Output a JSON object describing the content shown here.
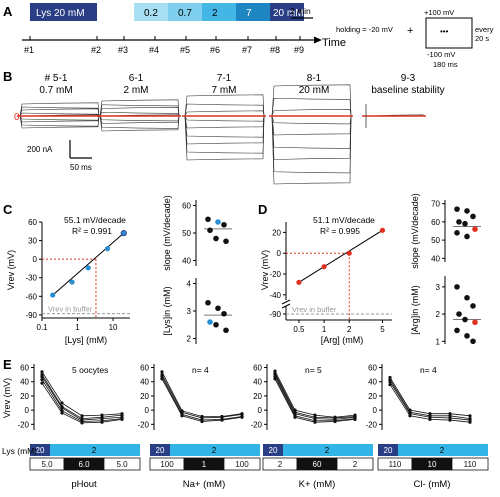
{
  "panel_labels": [
    "A",
    "B",
    "C",
    "D",
    "E"
  ],
  "panel_a": {
    "lys_bar": "Lys 20 mM",
    "conc_steps": [
      "0.2",
      "0.7",
      "2",
      "7",
      "20 mM"
    ],
    "step_colors": [
      "#a8dff3",
      "#7fd0ee",
      "#44b6e6",
      "#1f86c4",
      "#2a3e86"
    ],
    "scale": "2 min",
    "time_label": "Time",
    "markers": [
      "#1",
      "#2",
      "#3",
      "#4",
      "#5",
      "#6",
      "#7",
      "#8",
      "#9"
    ],
    "protocol": {
      "holding": "holding = -20 mV",
      "plus": "+",
      "v_top": "+100 mV",
      "dots": "•••",
      "v_bottom": "-100 mV",
      "duration": "180 ms",
      "every": "every 20 s"
    }
  },
  "panel_b": {
    "zero_label": "0",
    "groups": [
      {
        "title": "# 5-1",
        "sub": "0.7 mM"
      },
      {
        "title": "6-1",
        "sub": "2 mM"
      },
      {
        "title": "7-1",
        "sub": "7 mM"
      },
      {
        "title": "8-1",
        "sub": "20 mM"
      },
      {
        "title": "9-3",
        "sub": "baseline stability"
      }
    ],
    "scale_current": "200 nA",
    "scale_time": "50 ms"
  },
  "panel_c": {
    "annotation": "55.1 mV/decade",
    "r2": "R² = 0.991",
    "ylabel": "Vrev (mV)",
    "xlabel": "[Lys]   (mM)",
    "buffer_label": "Vrev in buffer",
    "yticks": [
      "60",
      "30",
      "0",
      "-30",
      "-60",
      "-90"
    ],
    "xticks": [
      "0.1",
      "1",
      "10"
    ],
    "slope_ylabel": "slope (mV/decade)",
    "slope_ticks": [
      "60",
      "50",
      "40"
    ],
    "lysin_ylabel": "[Lys]in (mM)",
    "lysin_ticks": [
      "4",
      "3",
      "2"
    ]
  },
  "panel_d": {
    "annotation": "51.1 mV/decade",
    "r2": "R² = 0.995",
    "ylabel": "Vrev (mV)",
    "xlabel": "[Arg]   (mM)",
    "buffer_label": "Vrev in buffer",
    "yticks": [
      "20",
      "0",
      "-20",
      "-40",
      "-90"
    ],
    "xticks": [
      "0.5",
      "1",
      "2",
      "5"
    ],
    "slope_ylabel": "slope (mV/decade)",
    "slope_ticks": [
      "70",
      "60",
      "50",
      "40"
    ],
    "argin_ylabel": "[Arg]in (mM)",
    "argin_ticks": [
      "3",
      "2",
      "1"
    ]
  },
  "panel_e": {
    "ylabel": "Vrev (mV)",
    "yticks": [
      "60",
      "40",
      "20",
      "0",
      "-20"
    ],
    "lys_label": "Lys (mM)",
    "lys_values": [
      "20",
      "2"
    ],
    "panels": [
      {
        "n_label": "5 oocytes",
        "bottom_values": [
          "5.0",
          "6.0",
          "5.0"
        ],
        "xlabel": "pHout"
      },
      {
        "n_label": "n= 4",
        "bottom_values": [
          "100",
          "1",
          "100"
        ],
        "xlabel": "Na+ (mM)"
      },
      {
        "n_label": "n= 5",
        "bottom_values": [
          "2",
          "60",
          "2"
        ],
        "xlabel": "K+ (mM)"
      },
      {
        "n_label": "n= 4",
        "bottom_values": [
          "110",
          "10",
          "110"
        ],
        "xlabel": "Cl- (mM)"
      }
    ]
  },
  "chart_data": [
    {
      "type": "scatter",
      "panel": "C",
      "title": "55.1 mV/decade",
      "xlabel": "[Lys] (mM)",
      "ylabel": "Vrev (mV)",
      "log_x": true,
      "xlim": [
        0.1,
        30
      ],
      "ylim": [
        -95,
        60
      ],
      "x": [
        0.2,
        0.7,
        2,
        7,
        20
      ],
      "y": [
        -58,
        -37,
        -14,
        17,
        42
      ],
      "buffer_level": -88
    },
    {
      "type": "scatter",
      "panel": "C-slope",
      "ylabel": "slope (mV/decade)",
      "ylim": [
        38,
        62
      ],
      "values": [
        55,
        54,
        53,
        51,
        48,
        47
      ],
      "highlight_index": [
        1
      ],
      "mean": 51.5
    },
    {
      "type": "scatter",
      "panel": "C-lysin",
      "ylabel": "[Lys]in (mM)",
      "ylim": [
        1.8,
        4.2
      ],
      "values": [
        3.3,
        3.1,
        2.9,
        2.6,
        2.5,
        2.3
      ],
      "highlight_index": [
        3
      ],
      "mean": 2.85
    },
    {
      "type": "scatter",
      "panel": "D",
      "title": "51.1 mV/decade",
      "xlabel": "[Arg] (mM)",
      "ylabel": "Vrev (mV)",
      "log_x": true,
      "xlim": [
        0.35,
        6.5
      ],
      "ylim": [
        -45,
        30
      ],
      "x": [
        0.5,
        1,
        2,
        5
      ],
      "y": [
        -28,
        -13,
        0,
        22
      ],
      "buffer_level": -90
    },
    {
      "type": "scatter",
      "panel": "D-slope",
      "ylabel": "slope (mV/decade)",
      "ylim": [
        38,
        72
      ],
      "values": [
        67,
        66,
        63,
        60,
        59,
        56,
        54,
        52
      ],
      "highlight_index": [
        5
      ],
      "mean": 57.5
    },
    {
      "type": "scatter",
      "panel": "D-argin",
      "ylabel": "[Arg]in (mM)",
      "ylim": [
        0.9,
        3.4
      ],
      "values": [
        3.0,
        2.6,
        2.3,
        2.0,
        1.8,
        1.7,
        1.4,
        1.2,
        1.0
      ],
      "highlight_index": [
        5
      ],
      "mean": 1.8
    },
    {
      "type": "line",
      "panel": "E-pHout",
      "ylabel": "Vrev (mV)",
      "ylim": [
        -28,
        65
      ],
      "x": [
        0,
        1,
        2,
        3,
        4
      ],
      "series": [
        {
          "values": [
            54,
            10,
            -8,
            -7,
            -5
          ]
        },
        {
          "values": [
            50,
            5,
            -12,
            -10,
            -7
          ]
        },
        {
          "values": [
            47,
            3,
            -14,
            -12,
            -10
          ]
        },
        {
          "values": [
            43,
            -1,
            -16,
            -15,
            -12
          ]
        },
        {
          "values": [
            38,
            -4,
            -18,
            -17,
            -13
          ]
        }
      ]
    },
    {
      "type": "line",
      "panel": "E-Na",
      "ylabel": "Vrev (mV)",
      "ylim": [
        -28,
        65
      ],
      "x": [
        0,
        1,
        2,
        3,
        4
      ],
      "series": [
        {
          "values": [
            54,
            -1,
            -9,
            -9,
            -5
          ]
        },
        {
          "values": [
            50,
            -3,
            -11,
            -10,
            -6
          ]
        },
        {
          "values": [
            47,
            -6,
            -14,
            -13,
            -9
          ]
        },
        {
          "values": [
            44,
            -8,
            -16,
            -14,
            -10
          ]
        }
      ]
    },
    {
      "type": "line",
      "panel": "E-K",
      "ylabel": "Vrev (mV)",
      "ylim": [
        -28,
        65
      ],
      "x": [
        0,
        1,
        2,
        3,
        4
      ],
      "series": [
        {
          "values": [
            55,
            0,
            -7,
            -10,
            -7
          ]
        },
        {
          "values": [
            52,
            -3,
            -10,
            -11,
            -9
          ]
        },
        {
          "values": [
            50,
            -5,
            -12,
            -13,
            -10
          ]
        },
        {
          "values": [
            47,
            -8,
            -15,
            -15,
            -12
          ]
        },
        {
          "values": [
            44,
            -10,
            -17,
            -16,
            -13
          ]
        }
      ]
    },
    {
      "type": "line",
      "panel": "E-Cl",
      "ylabel": "Vrev (mV)",
      "ylim": [
        -28,
        65
      ],
      "x": [
        0,
        1,
        2,
        3,
        4
      ],
      "series": [
        {
          "values": [
            46,
            0,
            -5,
            -5,
            -8
          ]
        },
        {
          "values": [
            43,
            -3,
            -8,
            -8,
            -12
          ]
        },
        {
          "values": [
            40,
            -5,
            -10,
            -11,
            -14
          ]
        },
        {
          "values": [
            36,
            -8,
            -13,
            -14,
            -17
          ]
        }
      ]
    }
  ]
}
